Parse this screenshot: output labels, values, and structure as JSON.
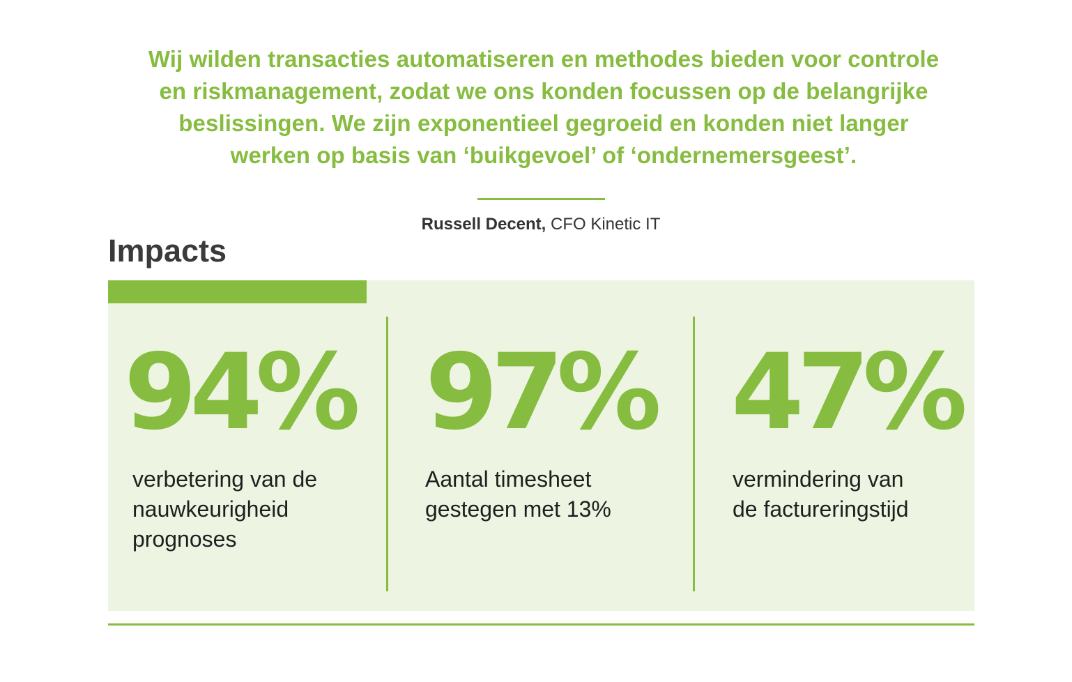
{
  "quote": {
    "lines": [
      "Wij wilden transacties automatiseren en methodes bieden voor controle",
      "en riskmanagement, zodat we ons konden focussen op de belangrijke",
      "beslissingen. We zijn exponentieel gegroeid en konden niet langer",
      "werken op basis van ‘buikgevoel’ of ‘ondernemersgeest’."
    ]
  },
  "attribution": {
    "name": "Russell Decent,",
    "role": "CFO Kinetic IT"
  },
  "section": {
    "title": "Impacts"
  },
  "stats": [
    {
      "value": "94%",
      "description": [
        "verbetering van de",
        "nauwkeurigheid",
        "prognoses"
      ]
    },
    {
      "value": "97%",
      "description": [
        "Aantal timesheet",
        "gestegen met 13%"
      ]
    },
    {
      "value": "47%",
      "description": [
        "vermindering van",
        "de factureringstijd"
      ]
    }
  ],
  "colors": {
    "accent": "#86bc3f",
    "panel_background": "#edf4e2",
    "heading": "#3a3a3a",
    "body_text": "#1f1f1f"
  }
}
